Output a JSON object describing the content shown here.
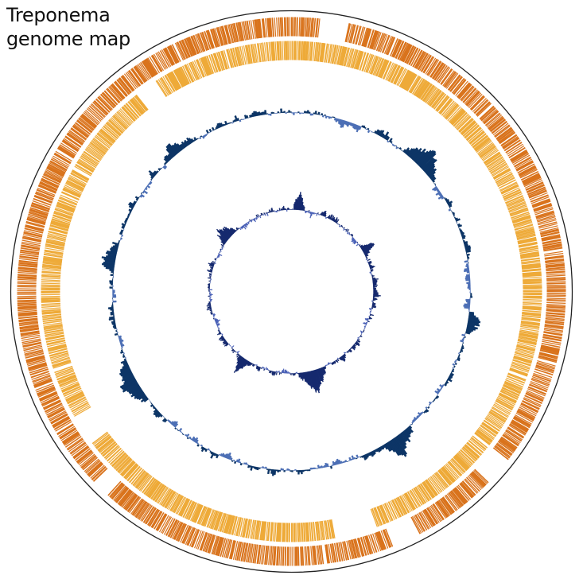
{
  "title": "Treponema\ngenome map",
  "colors": {
    "background": "#ffffff",
    "outline": "#222222",
    "forward_cds": "#d9731c",
    "reverse_cds": "#eeaa38",
    "gc_content_positive": "#0d3566",
    "gc_content_negative": "#4c6fb5",
    "gc_skew_positive": "#15296e",
    "gc_skew_negative": "#4d63b8"
  },
  "tracks": [
    {
      "name": "forward-cds-track",
      "type": "features",
      "color_key": "forward_cds"
    },
    {
      "name": "reverse-cds-track",
      "type": "features",
      "color_key": "reverse_cds"
    },
    {
      "name": "gc-content-track",
      "type": "plot"
    },
    {
      "name": "gc-skew-track",
      "type": "plot"
    }
  ]
}
